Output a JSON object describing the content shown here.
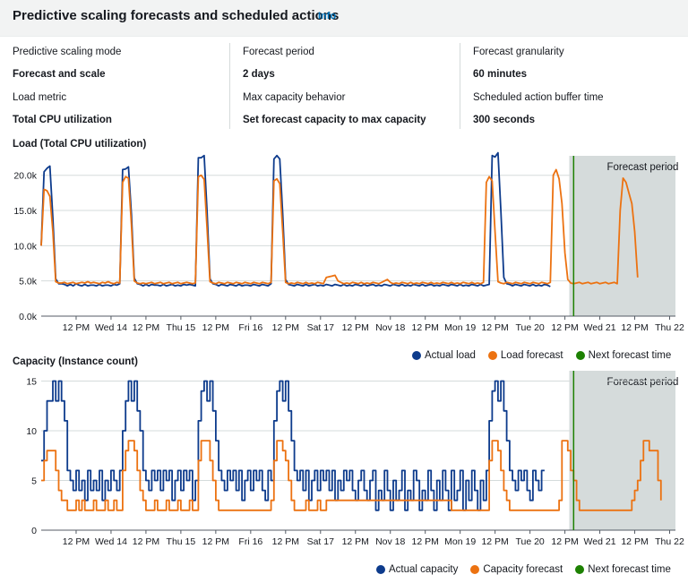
{
  "header": {
    "title": "Predictive scaling forecasts and scheduled actions",
    "info": "Info"
  },
  "config": [
    {
      "label": "Predictive scaling mode",
      "value": "Forecast and scale"
    },
    {
      "label": "Forecast period",
      "value": "2 days"
    },
    {
      "label": "Forecast granularity",
      "value": "60 minutes"
    },
    {
      "label": "Load metric",
      "value": "Total CPU utilization"
    },
    {
      "label": "Max capacity behavior",
      "value": "Set forecast capacity to max capacity"
    },
    {
      "label": "Scheduled action buffer time",
      "value": "300 seconds"
    }
  ],
  "colors": {
    "actual": "#0d3b8c",
    "forecast": "#ec7211",
    "next": "#1d8102",
    "forecastBg": "#d5dbdb"
  },
  "x_ticks": [
    "12 PM",
    "Wed 14",
    "12 PM",
    "Thu 15",
    "12 PM",
    "Fri 16",
    "12 PM",
    "Sat 17",
    "12 PM",
    "Nov 18",
    "12 PM",
    "Mon 19",
    "12 PM",
    "Tue 20",
    "12 PM",
    "Wed 21",
    "12 PM",
    "Thu 22"
  ],
  "chart_data": [
    {
      "type": "line",
      "title": "Load (Total CPU utilization)",
      "ylim": [
        0,
        22000
      ],
      "y_ticks": [
        "0.0k",
        "5.0k",
        "10.0k",
        "15.0k",
        "20.0k"
      ],
      "forecast_region_label": "Forecast period",
      "next_forecast_hour": 183,
      "legend": [
        "Actual load",
        "Load forecast",
        "Next forecast time"
      ],
      "hours_per_point": 1,
      "series": [
        {
          "name": "Actual load",
          "start_hour": 0,
          "values": [
            10000,
            20500,
            21000,
            21300,
            14000,
            5300,
            4600,
            4600,
            4500,
            4300,
            4500,
            4300,
            4600,
            4400,
            4300,
            4500,
            4300,
            4400,
            4400,
            4300,
            4500,
            4300,
            4400,
            4400,
            4300,
            4500,
            4400,
            4600,
            20800,
            20900,
            21200,
            14500,
            5400,
            4600,
            4500,
            4300,
            4500,
            4300,
            4500,
            4400,
            4400,
            4300,
            4500,
            4300,
            4400,
            4500,
            4300,
            4400,
            4300,
            4500,
            4400,
            4500,
            4400,
            4300,
            22500,
            22500,
            22800,
            15000,
            5300,
            4600,
            4500,
            4300,
            4500,
            4400,
            4300,
            4500,
            4400,
            4300,
            4500,
            4300,
            4400,
            4400,
            4300,
            4500,
            4400,
            4300,
            4500,
            4400,
            4300,
            4600,
            22300,
            22800,
            22300,
            14500,
            5200,
            4500,
            4400,
            4300,
            4500,
            4400,
            4300,
            4500,
            4300,
            4400,
            4500,
            4300,
            4400,
            4300,
            4500,
            4400,
            4300,
            4500,
            4400,
            4300,
            4500,
            4300,
            4400,
            4300,
            4500,
            4400,
            4300,
            4500,
            4300,
            4400,
            4500,
            4300,
            4400,
            4300,
            4500,
            4400,
            4300,
            4500,
            4400,
            4300,
            4500,
            4300,
            4400,
            4300,
            4500,
            4400,
            4300,
            4500,
            4300,
            4400,
            4500,
            4300,
            4400,
            4300,
            4500,
            4400,
            4300,
            4500,
            4400,
            4300,
            4500,
            4300,
            4400,
            4300,
            4500,
            4400,
            4300,
            4500,
            4300,
            4400,
            4500,
            22800,
            22600,
            23200,
            15000,
            5500,
            4600,
            4500,
            4300,
            4500,
            4400,
            4300,
            4500,
            4400,
            4300,
            4500,
            4300,
            4400,
            4300,
            4500,
            4400,
            4200
          ]
        },
        {
          "name": "Load forecast",
          "start_hour": 0,
          "values": [
            10000,
            18000,
            17800,
            17000,
            12000,
            4900,
            4700,
            4700,
            4800,
            4600,
            4700,
            4800,
            4600,
            4700,
            4800,
            4700,
            4900,
            4700,
            4800,
            4700,
            4600,
            4800,
            4700,
            4900,
            4700,
            4600,
            4800,
            4700,
            19000,
            19800,
            19600,
            13000,
            5000,
            4700,
            4600,
            4700,
            4600,
            4700,
            4800,
            4600,
            4700,
            4800,
            4600,
            4700,
            4800,
            4600,
            4700,
            4800,
            4600,
            4700,
            4800,
            4700,
            4600,
            4700,
            19800,
            20000,
            19400,
            12500,
            4900,
            4700,
            4600,
            4800,
            4700,
            4600,
            4800,
            4700,
            4600,
            4800,
            4700,
            4600,
            4800,
            4700,
            4600,
            4800,
            4700,
            4600,
            4800,
            4700,
            4600,
            4800,
            19200,
            19500,
            18800,
            12000,
            4800,
            4600,
            4700,
            4600,
            4800,
            4700,
            4600,
            4800,
            4600,
            4700,
            4600,
            4800,
            4700,
            4600,
            5500,
            5600,
            5700,
            5800,
            5000,
            4800,
            4600,
            4700,
            4600,
            4800,
            4700,
            4600,
            4800,
            4600,
            4700,
            4600,
            4800,
            4700,
            4600,
            4800,
            5000,
            5200,
            4800,
            4600,
            4700,
            4600,
            4800,
            4700,
            4600,
            4800,
            4600,
            4700,
            4600,
            4800,
            4700,
            4600,
            4800,
            4600,
            4700,
            4600,
            4800,
            4700,
            4600,
            4800,
            4600,
            4700,
            4600,
            4800,
            4700,
            4600,
            4800,
            4600,
            4700,
            4600,
            4800,
            19000,
            19800,
            19200,
            12000,
            4900,
            4700,
            4600,
            4800,
            4700,
            4600,
            4800,
            4700,
            4600,
            4800,
            4700,
            4600,
            4800,
            4700,
            4600,
            4800,
            4700,
            4600,
            4800,
            20000,
            20800,
            19500,
            16000,
            9000,
            5200,
            4700,
            4600,
            4700,
            4800,
            4600,
            4700,
            4800,
            4600,
            4700,
            4800,
            4600,
            4700,
            4800,
            4600,
            4700,
            4800,
            4600,
            15000,
            19600,
            19000,
            17500,
            16000,
            12000,
            5500
          ]
        }
      ]
    },
    {
      "type": "line",
      "title": "Capacity (Instance count)",
      "ylim": [
        0,
        15.5
      ],
      "y_ticks": [
        "0",
        "5",
        "10",
        "15"
      ],
      "forecast_region_label": "Forecast period",
      "next_forecast_hour": 183,
      "legend": [
        "Actual capacity",
        "Capacity forecast",
        "Next forecast time"
      ],
      "series": [
        {
          "name": "Actual capacity",
          "start_hour": 0,
          "values": [
            7,
            10,
            13,
            13,
            15,
            13,
            15,
            13,
            11,
            6,
            5,
            4,
            6,
            4,
            5,
            3,
            6,
            4,
            5,
            4,
            6,
            3,
            5,
            4,
            6,
            5,
            4,
            6,
            10,
            13,
            15,
            13,
            15,
            12,
            10,
            6,
            5,
            4,
            6,
            5,
            6,
            4,
            6,
            5,
            6,
            3,
            5,
            6,
            4,
            6,
            5,
            6,
            3,
            5,
            11,
            14,
            15,
            13,
            15,
            12,
            9,
            6,
            5,
            4,
            6,
            5,
            6,
            4,
            6,
            3,
            5,
            6,
            4,
            6,
            5,
            6,
            4,
            3,
            6,
            5,
            11,
            14,
            15,
            13,
            15,
            12,
            9,
            6,
            5,
            6,
            4,
            6,
            3,
            5,
            6,
            4,
            6,
            5,
            6,
            4,
            6,
            3,
            5,
            4,
            6,
            5,
            6,
            4,
            3,
            5,
            6,
            4,
            3,
            5,
            6,
            2,
            4,
            3,
            6,
            4,
            2,
            5,
            3,
            4,
            6,
            2,
            4,
            3,
            6,
            5,
            2,
            4,
            3,
            6,
            4,
            2,
            5,
            3,
            6,
            4,
            2,
            6,
            3,
            4,
            6,
            2,
            5,
            3,
            6,
            4,
            2,
            5,
            3,
            6,
            11,
            14,
            15,
            13,
            15,
            12,
            9,
            6,
            5,
            4,
            6,
            5,
            6,
            4,
            3,
            6,
            5,
            4,
            6,
            6
          ]
        },
        {
          "name": "Capacity forecast",
          "start_hour": 0,
          "values": [
            5,
            7,
            8,
            8,
            8,
            6,
            4,
            3,
            3,
            2,
            2,
            2,
            3,
            2,
            3,
            2,
            2,
            2,
            3,
            2,
            2,
            2,
            3,
            2,
            2,
            3,
            2,
            2,
            6,
            8,
            9,
            9,
            8,
            6,
            4,
            3,
            2,
            2,
            2,
            3,
            2,
            2,
            2,
            3,
            2,
            2,
            2,
            3,
            2,
            2,
            2,
            3,
            2,
            2,
            7,
            9,
            9,
            9,
            7,
            5,
            3,
            2,
            2,
            2,
            2,
            2,
            2,
            2,
            2,
            2,
            2,
            2,
            2,
            2,
            2,
            2,
            2,
            2,
            2,
            3,
            7,
            9,
            9,
            8,
            7,
            5,
            3,
            2,
            2,
            2,
            2,
            3,
            2,
            2,
            2,
            3,
            2,
            2,
            3,
            3,
            3,
            3,
            3,
            3,
            3,
            3,
            3,
            3,
            3,
            3,
            3,
            3,
            3,
            3,
            3,
            3,
            3,
            3,
            3,
            3,
            3,
            3,
            3,
            3,
            3,
            3,
            3,
            3,
            3,
            3,
            3,
            3,
            3,
            3,
            3,
            3,
            3,
            3,
            3,
            3,
            3,
            2,
            2,
            2,
            2,
            2,
            2,
            2,
            2,
            2,
            2,
            2,
            2,
            2,
            7,
            9,
            9,
            8,
            6,
            4,
            3,
            2,
            2,
            2,
            2,
            2,
            2,
            2,
            2,
            2,
            2,
            2,
            2,
            2,
            2,
            2,
            2,
            2,
            3,
            9,
            9,
            8,
            6,
            5,
            3,
            2,
            2,
            2,
            2,
            2,
            2,
            2,
            2,
            2,
            2,
            2,
            2,
            2,
            2,
            2,
            2,
            2,
            2,
            3,
            4,
            5,
            7,
            9,
            9,
            8,
            8,
            8,
            5,
            3
          ]
        }
      ]
    }
  ]
}
